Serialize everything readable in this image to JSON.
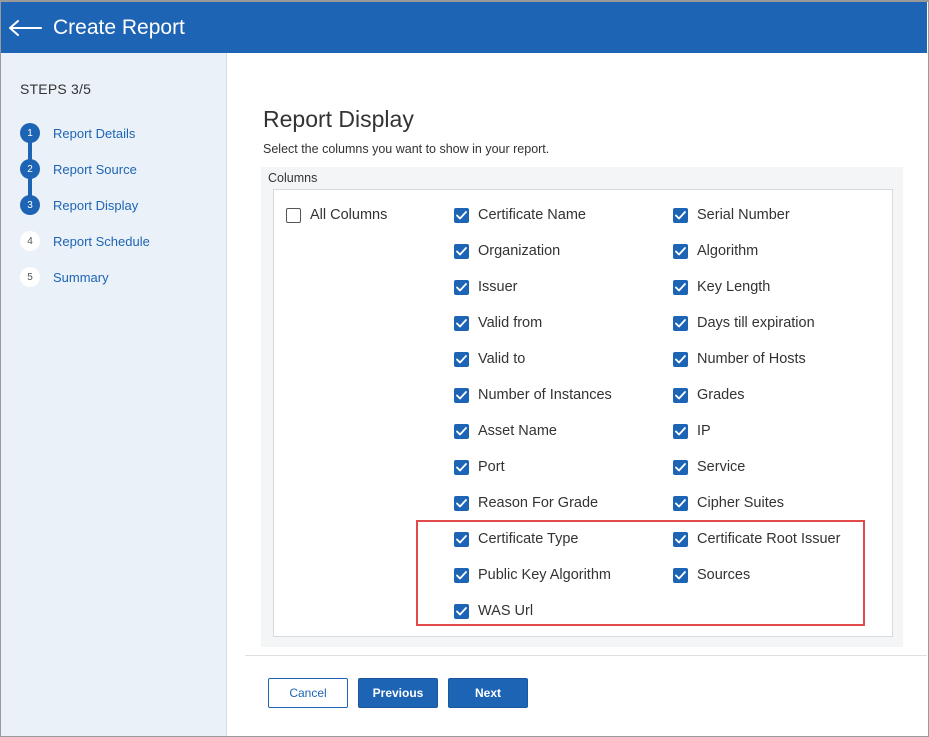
{
  "header": {
    "title": "Create Report"
  },
  "sidebar": {
    "steps_label": "STEPS 3/5",
    "steps": [
      {
        "number": "1",
        "label": "Report Details",
        "state": "done"
      },
      {
        "number": "2",
        "label": "Report Source",
        "state": "done"
      },
      {
        "number": "3",
        "label": "Report Display",
        "state": "current"
      },
      {
        "number": "4",
        "label": "Report Schedule",
        "state": "todo"
      },
      {
        "number": "5",
        "label": "Summary",
        "state": "todo"
      }
    ]
  },
  "main": {
    "title": "Report Display",
    "subtitle": "Select the columns you want to show in your report.",
    "columns_label": "Columns",
    "all_columns": {
      "label": "All Columns",
      "checked": false
    },
    "column_a": [
      {
        "label": "Certificate Name",
        "checked": true
      },
      {
        "label": "Organization",
        "checked": true
      },
      {
        "label": "Issuer",
        "checked": true
      },
      {
        "label": "Valid from",
        "checked": true
      },
      {
        "label": "Valid to",
        "checked": true
      },
      {
        "label": "Number of Instances",
        "checked": true
      },
      {
        "label": "Asset Name",
        "checked": true
      },
      {
        "label": "Port",
        "checked": true
      },
      {
        "label": "Reason For Grade",
        "checked": true
      },
      {
        "label": "Certificate Type",
        "checked": true
      },
      {
        "label": "Public Key Algorithm",
        "checked": true
      },
      {
        "label": "WAS Url",
        "checked": true
      }
    ],
    "column_b": [
      {
        "label": "Serial Number",
        "checked": true
      },
      {
        "label": "Algorithm",
        "checked": true
      },
      {
        "label": "Key Length",
        "checked": true
      },
      {
        "label": "Days till expiration",
        "checked": true
      },
      {
        "label": "Number of Hosts",
        "checked": true
      },
      {
        "label": "Grades",
        "checked": true
      },
      {
        "label": "IP",
        "checked": true
      },
      {
        "label": "Service",
        "checked": true
      },
      {
        "label": "Cipher Suites",
        "checked": true
      },
      {
        "label": "Certificate Root Issuer",
        "checked": true
      },
      {
        "label": "Sources",
        "checked": true
      }
    ]
  },
  "footer": {
    "cancel_label": "Cancel",
    "previous_label": "Previous",
    "next_label": "Next"
  },
  "colors": {
    "accent": "#1e64b4",
    "sidebar_bg": "#ebf1f8",
    "highlight": "#e04a4a"
  }
}
